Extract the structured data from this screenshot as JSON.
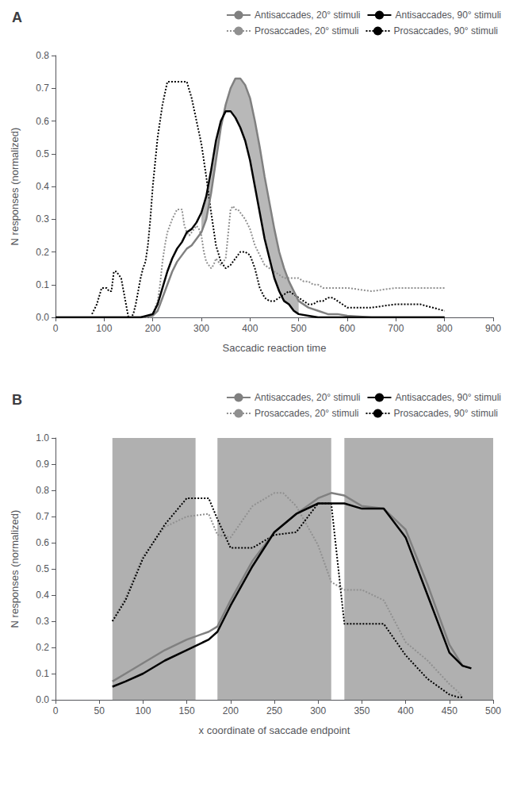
{
  "chart_data": [
    {
      "type": "line",
      "title": "A",
      "xlabel": "Saccadic reaction time",
      "ylabel": "N responses (normalized)",
      "xlim": [
        0,
        900
      ],
      "ylim": [
        0,
        0.8
      ],
      "xticks": [
        0,
        100,
        200,
        300,
        400,
        500,
        600,
        700,
        800,
        900
      ],
      "yticks": [
        {
          "value": 0,
          "label": "0.0"
        },
        0.1,
        0.2,
        0.3,
        0.4,
        0.5,
        0.6,
        0.7,
        0.8
      ],
      "grid": false,
      "legend": "upper right",
      "series": [
        {
          "name": "Antisaccades, 20° stimuli",
          "color": "#808080",
          "line_style": "solid",
          "x": [
            0,
            100,
            150,
            175,
            200,
            210,
            220,
            230,
            240,
            250,
            260,
            270,
            280,
            290,
            300,
            310,
            320,
            330,
            340,
            350,
            360,
            370,
            380,
            390,
            400,
            410,
            420,
            430,
            440,
            450,
            460,
            470,
            480,
            490,
            500,
            520,
            540,
            560,
            580,
            600,
            650,
            700,
            750,
            800
          ],
          "values": [
            0,
            0,
            0,
            0,
            0.005,
            0.02,
            0.06,
            0.1,
            0.14,
            0.17,
            0.19,
            0.21,
            0.22,
            0.24,
            0.26,
            0.3,
            0.38,
            0.48,
            0.58,
            0.65,
            0.7,
            0.73,
            0.73,
            0.71,
            0.67,
            0.6,
            0.52,
            0.43,
            0.35,
            0.27,
            0.2,
            0.15,
            0.11,
            0.08,
            0.05,
            0.03,
            0.02,
            0.01,
            0.01,
            0.005,
            0.0,
            0.0,
            0.0,
            0.0
          ]
        },
        {
          "name": "Antisaccades, 90° stimuli",
          "color": "#000000",
          "line_style": "solid",
          "x": [
            0,
            100,
            150,
            175,
            200,
            210,
            220,
            230,
            240,
            250,
            260,
            270,
            280,
            290,
            300,
            310,
            320,
            330,
            340,
            350,
            360,
            370,
            380,
            390,
            400,
            410,
            420,
            430,
            440,
            450,
            460,
            470,
            480,
            490,
            500,
            520,
            540,
            560,
            580,
            600,
            650,
            700,
            750,
            800
          ],
          "values": [
            0,
            0,
            0,
            0,
            0.01,
            0.04,
            0.09,
            0.14,
            0.18,
            0.21,
            0.23,
            0.26,
            0.27,
            0.29,
            0.32,
            0.37,
            0.45,
            0.54,
            0.6,
            0.63,
            0.63,
            0.61,
            0.58,
            0.54,
            0.48,
            0.4,
            0.32,
            0.24,
            0.18,
            0.12,
            0.08,
            0.05,
            0.04,
            0.02,
            0.01,
            0.005,
            0.0,
            0.0,
            0.0,
            0.0,
            0.0,
            0.0,
            0.0,
            0.0
          ]
        },
        {
          "name": "Prosaccades, 20° stimuli",
          "color": "#909090",
          "line_style": "dotted",
          "x": [
            75,
            85,
            95,
            105,
            115,
            125,
            135,
            145,
            155,
            165,
            175,
            185,
            195,
            200,
            210,
            215,
            220,
            225,
            230,
            240,
            250,
            255,
            260,
            265,
            270,
            275,
            280,
            285,
            290,
            295,
            300,
            305,
            310,
            315,
            320,
            325,
            330,
            335,
            340,
            345,
            350,
            360,
            365,
            370,
            375,
            380,
            385,
            390,
            400,
            410,
            420,
            430,
            440,
            450,
            460,
            470,
            480,
            490,
            500,
            510,
            520,
            530,
            540,
            550,
            560,
            570,
            580,
            590,
            600,
            650,
            700,
            750,
            800
          ],
          "values": [
            0,
            0,
            0,
            0,
            0,
            0,
            0,
            0,
            0,
            0,
            0,
            0,
            0,
            0.01,
            0.05,
            0.1,
            0.17,
            0.22,
            0.26,
            0.3,
            0.33,
            0.33,
            0.33,
            0.28,
            0.26,
            0.25,
            0.26,
            0.27,
            0.28,
            0.27,
            0.25,
            0.2,
            0.17,
            0.16,
            0.15,
            0.16,
            0.18,
            0.17,
            0.16,
            0.17,
            0.18,
            0.33,
            0.34,
            0.33,
            0.33,
            0.32,
            0.31,
            0.3,
            0.27,
            0.22,
            0.19,
            0.16,
            0.15,
            0.14,
            0.13,
            0.12,
            0.12,
            0.12,
            0.12,
            0.11,
            0.11,
            0.1,
            0.1,
            0.09,
            0.09,
            0.09,
            0.09,
            0.09,
            0.09,
            0.08,
            0.09,
            0.09,
            0.09
          ]
        },
        {
          "name": "Prosaccades, 90° stimuli",
          "color": "#000000",
          "line_style": "dotted",
          "x": [
            75,
            85,
            95,
            100,
            105,
            110,
            115,
            120,
            125,
            130,
            135,
            140,
            145,
            150,
            155,
            160,
            165,
            170,
            175,
            180,
            185,
            190,
            195,
            200,
            210,
            220,
            230,
            240,
            250,
            260,
            270,
            280,
            290,
            300,
            310,
            320,
            330,
            340,
            350,
            360,
            370,
            380,
            390,
            400,
            410,
            420,
            430,
            440,
            450,
            460,
            470,
            480,
            490,
            500,
            510,
            520,
            530,
            540,
            550,
            560,
            570,
            580,
            590,
            600,
            650,
            700,
            750,
            800
          ],
          "values": [
            0.01,
            0.04,
            0.09,
            0.09,
            0.09,
            0.08,
            0.08,
            0.14,
            0.14,
            0.13,
            0.12,
            0.08,
            0.04,
            0.0,
            0.0,
            0.01,
            0.04,
            0.08,
            0.12,
            0.15,
            0.17,
            0.22,
            0.3,
            0.4,
            0.55,
            0.65,
            0.72,
            0.72,
            0.72,
            0.72,
            0.72,
            0.67,
            0.6,
            0.53,
            0.43,
            0.32,
            0.22,
            0.17,
            0.15,
            0.16,
            0.18,
            0.2,
            0.2,
            0.19,
            0.15,
            0.09,
            0.06,
            0.05,
            0.05,
            0.06,
            0.07,
            0.08,
            0.07,
            0.06,
            0.05,
            0.04,
            0.04,
            0.05,
            0.05,
            0.06,
            0.06,
            0.05,
            0.04,
            0.03,
            0.03,
            0.04,
            0.04,
            0.02
          ]
        }
      ],
      "fill": {
        "color": "#b8b8b8",
        "x": [
          300,
          310,
          320,
          330,
          340,
          350,
          360,
          370,
          380,
          390,
          400,
          410,
          420,
          430,
          440,
          450,
          460,
          470,
          480,
          490,
          500
        ],
        "lower": [
          0.32,
          0.37,
          0.45,
          0.54,
          0.6,
          0.63,
          0.63,
          0.61,
          0.58,
          0.54,
          0.48,
          0.4,
          0.32,
          0.24,
          0.18,
          0.12,
          0.08,
          0.05,
          0.04,
          0.02,
          0.01
        ],
        "upper": [
          0.26,
          0.3,
          0.38,
          0.48,
          0.58,
          0.65,
          0.7,
          0.73,
          0.73,
          0.71,
          0.67,
          0.6,
          0.52,
          0.43,
          0.35,
          0.27,
          0.2,
          0.15,
          0.11,
          0.08,
          0.05
        ]
      }
    },
    {
      "type": "line",
      "title": "B",
      "xlabel": "x coordinate of saccade endpoint",
      "ylabel": "N responses (normalized)",
      "xlim": [
        0,
        500
      ],
      "ylim": [
        0,
        1.0
      ],
      "xticks": [
        0,
        50,
        100,
        150,
        200,
        250,
        300,
        350,
        400,
        450,
        500
      ],
      "yticks": [
        {
          "value": 0,
          "label": "0.0"
        },
        0.1,
        0.2,
        0.3,
        0.4,
        0.5,
        0.6,
        0.7,
        0.8,
        0.9,
        {
          "value": 1.0,
          "label": "1.0"
        }
      ],
      "grid": false,
      "legend": "upper right",
      "series": [
        {
          "name": "Antisaccades, 20° stimuli",
          "color": "#808080",
          "line_style": "solid",
          "x": [
            65,
            80,
            100,
            125,
            150,
            175,
            185,
            200,
            225,
            250,
            275,
            300,
            315,
            330,
            350,
            375,
            400,
            425,
            450,
            465,
            475
          ],
          "values": [
            0.07,
            0.1,
            0.14,
            0.19,
            0.23,
            0.26,
            0.28,
            0.38,
            0.53,
            0.64,
            0.71,
            0.77,
            0.79,
            0.78,
            0.74,
            0.73,
            0.65,
            0.44,
            0.21,
            0.13,
            0.12
          ]
        },
        {
          "name": "Antisaccades, 90° stimuli",
          "color": "#000000",
          "line_style": "solid",
          "x": [
            65,
            80,
            100,
            125,
            150,
            175,
            185,
            200,
            225,
            250,
            275,
            300,
            315,
            330,
            350,
            375,
            400,
            425,
            450,
            465,
            475
          ],
          "values": [
            0.05,
            0.07,
            0.1,
            0.15,
            0.19,
            0.23,
            0.26,
            0.36,
            0.51,
            0.64,
            0.71,
            0.75,
            0.75,
            0.75,
            0.73,
            0.73,
            0.62,
            0.4,
            0.18,
            0.13,
            0.12
          ]
        },
        {
          "name": "Prosaccades, 20° stimuli",
          "color": "#909090",
          "line_style": "dotted",
          "x": [
            65,
            80,
            100,
            125,
            150,
            175,
            185,
            200,
            225,
            250,
            260,
            275,
            300,
            315,
            330,
            350,
            375,
            400,
            425,
            450,
            460,
            465
          ],
          "values": [
            0.3,
            0.39,
            0.55,
            0.66,
            0.7,
            0.71,
            0.63,
            0.62,
            0.74,
            0.79,
            0.79,
            0.74,
            0.59,
            0.45,
            0.42,
            0.42,
            0.38,
            0.22,
            0.15,
            0.06,
            0.03,
            0.01
          ]
        },
        {
          "name": "Prosaccades, 90° stimuli",
          "color": "#000000",
          "line_style": "dotted",
          "x": [
            65,
            80,
            100,
            125,
            150,
            175,
            185,
            200,
            225,
            250,
            275,
            300,
            315,
            330,
            350,
            375,
            400,
            425,
            450,
            460,
            465
          ],
          "values": [
            0.3,
            0.38,
            0.54,
            0.67,
            0.77,
            0.77,
            0.69,
            0.58,
            0.58,
            0.63,
            0.64,
            0.75,
            0.75,
            0.29,
            0.29,
            0.29,
            0.17,
            0.08,
            0.02,
            0.01,
            0.01
          ]
        }
      ],
      "bands": [
        [
          65,
          160
        ],
        [
          185,
          315
        ],
        [
          330,
          500
        ]
      ],
      "band_color": "#b0b0b0"
    }
  ]
}
